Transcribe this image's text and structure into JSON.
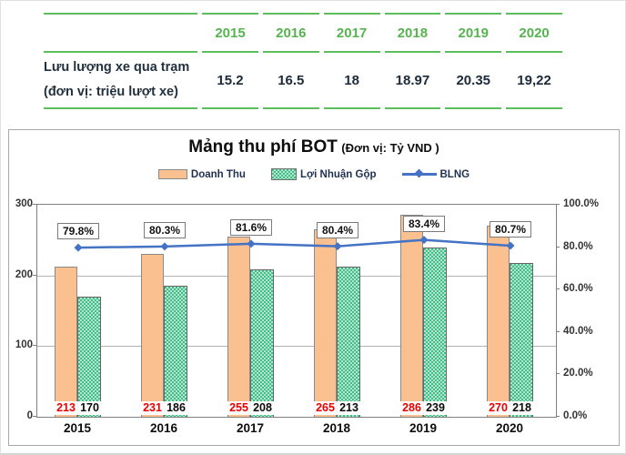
{
  "table": {
    "years": [
      "2015",
      "2016",
      "2017",
      "2018",
      "2019",
      "2020"
    ],
    "row_label_line1": "Lưu lượng xe qua trạm",
    "row_label_line2": "(đơn vị: triệu lượt xe)",
    "values": [
      "15.2",
      "16.5",
      "18",
      "18.97",
      "20.35",
      "19,22"
    ]
  },
  "chart": {
    "title": "Mảng thu phí BOT",
    "title_unit": "(Đơn vị: Tỷ VND )",
    "legend": {
      "doanh_thu": "Doanh Thu",
      "loi_nhuan_gop": "Lợi Nhuận Gộp",
      "blng": "BLNG"
    }
  },
  "chart_data": [
    {
      "type": "table",
      "title": "Lưu lượng xe qua trạm (đơn vị: triệu lượt xe)",
      "columns": [
        "2015",
        "2016",
        "2017",
        "2018",
        "2019",
        "2020"
      ],
      "rows": [
        [
          "15.2",
          "16.5",
          "18",
          "18.97",
          "20.35",
          "19,22"
        ]
      ]
    },
    {
      "type": "bar",
      "title": "Mảng thu phí BOT (Đơn vị: Tỷ VND)",
      "categories": [
        "2015",
        "2016",
        "2017",
        "2018",
        "2019",
        "2020"
      ],
      "series": [
        {
          "name": "Doanh Thu",
          "type": "bar",
          "axis": "left",
          "color": "#fac090",
          "values": [
            213,
            231,
            255,
            265,
            286,
            270
          ],
          "label_color": "#e90000"
        },
        {
          "name": "Lợi Nhuận Gộp",
          "type": "bar",
          "axis": "left",
          "color": "#3fbe86",
          "values": [
            170,
            186,
            208,
            213,
            239,
            218
          ],
          "label_color": "#0a0a0a"
        },
        {
          "name": "BLNG",
          "type": "line",
          "axis": "right",
          "color": "#4472c4",
          "values": [
            79.8,
            80.3,
            81.6,
            80.4,
            83.4,
            80.7
          ],
          "labels": [
            "79.8%",
            "80.3%",
            "81.6%",
            "80.4%",
            "83.4%",
            "80.7%"
          ]
        }
      ],
      "left_axis": {
        "lim": [
          0,
          300
        ],
        "ticks": [
          "300",
          "200",
          "100",
          "0"
        ]
      },
      "right_axis": {
        "lim": [
          0,
          100
        ],
        "ticks": [
          "100.0%",
          "80.0%",
          "60.0%",
          "40.0%",
          "20.0%",
          "0.0%"
        ]
      },
      "grid": "horizontal gridlines at 100 and 200 (left axis)",
      "legend_position": "top"
    }
  ],
  "colors": {
    "table_line_green": "#5cbd5c",
    "table_year_green": "#55b44e",
    "table_text_navy": "#1c2a39",
    "bar_orange": "#fac090",
    "bar_green": "#3fbe86",
    "line_blue": "#4472c4",
    "revenue_label_red": "#e90000",
    "axis_text": "#333333"
  }
}
